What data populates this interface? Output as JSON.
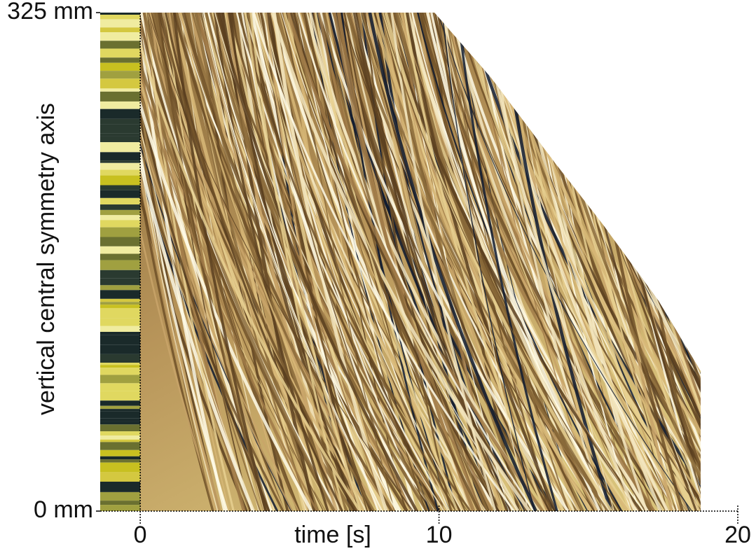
{
  "chart_data": {
    "type": "image",
    "xlabel": "time [s]",
    "ylabel": "vertical central symmetry axis",
    "xlim": [
      -1.34,
      20
    ],
    "xticks": [
      0,
      10,
      20
    ],
    "ylim": [
      0,
      325
    ],
    "yticks": [
      {
        "value": 0,
        "label": "0 mm"
      },
      {
        "value": 325,
        "label": "325 mm"
      }
    ]
  }
}
